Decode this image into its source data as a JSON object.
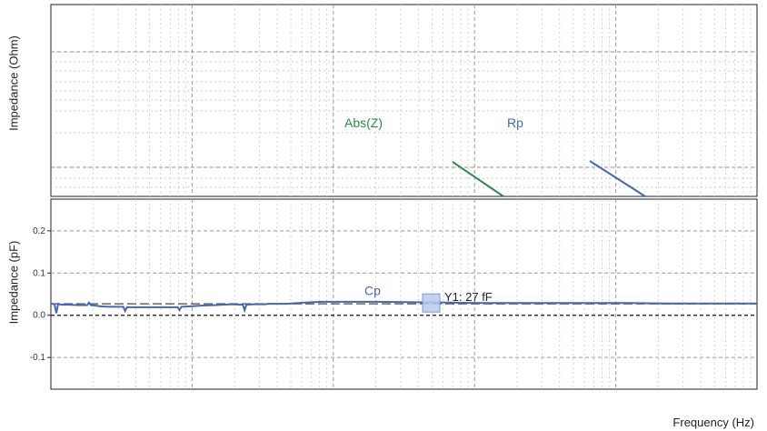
{
  "chart_data": [
    {
      "type": "line",
      "title": "",
      "ylabel": "Impedance (Ohm)",
      "xscale": "log",
      "yscale": "log",
      "ytick_labels_shown": false,
      "grid": true,
      "series": [
        {
          "name": "Abs(Z)",
          "color": "#2e8b45",
          "points": [
            [
              0.0,
              1.0
            ],
            [
              0.4,
              0.0
            ]
          ]
        },
        {
          "name": "Rp",
          "color": "#4a67ad",
          "points": [
            [
              1.0,
              1.0
            ],
            [
              1.4,
              0.0
            ]
          ]
        }
      ]
    },
    {
      "type": "line",
      "ylabel": "Impedance (pF)",
      "xlabel": "Frequency (Hz)",
      "xscale": "log",
      "ylim": [
        -0.175,
        0.275
      ],
      "yticks": [
        0.2,
        0.1,
        0.0,
        -0.1
      ],
      "ytick_labels": [
        "0.2",
        "0.1",
        "0.0",
        "-0.1"
      ],
      "grid": true,
      "reference_line": 0.0,
      "series": [
        {
          "name": "Cp",
          "color": "#4a67ad",
          "x": [
            1,
            1.1,
            1.15,
            1.2,
            1.3,
            1.5,
            1.8,
            2,
            2.05,
            2.1,
            2.2,
            2.4,
            2.6,
            2.8,
            3,
            3.05,
            3.1,
            3.3,
            3.6,
            4,
            4.5,
            4.55,
            4.6,
            4.8,
            5,
            5.2,
            5.5,
            6,
            6.3,
            6.35,
            6.4,
            6.6,
            6.9,
            7,
            7.5,
            8,
            8.5,
            9,
            9.5,
            10,
            11,
            12,
            13,
            14,
            15,
            16,
            17,
            18,
            19,
            20,
            20.5
          ],
          "y": [
            0.028,
            0.026,
            0.005,
            0.027,
            0.025,
            0.025,
            0.024,
            0.024,
            0.03,
            0.024,
            0.023,
            0.021,
            0.02,
            0.02,
            0.02,
            0.01,
            0.019,
            0.019,
            0.019,
            0.019,
            0.019,
            0.012,
            0.02,
            0.021,
            0.022,
            0.023,
            0.024,
            0.026,
            0.025,
            0.012,
            0.025,
            0.026,
            0.026,
            0.027,
            0.027,
            0.03,
            0.032,
            0.032,
            0.032,
            0.032,
            0.031,
            0.03,
            0.029,
            0.029,
            0.029,
            0.029,
            0.029,
            0.028,
            0.028,
            0.028,
            0.028
          ]
        }
      ],
      "annotations": [
        {
          "text": "Y1: 27 fF",
          "y": 0.027
        }
      ]
    }
  ],
  "x_axis": {
    "label": "Frequency (Hz)"
  }
}
